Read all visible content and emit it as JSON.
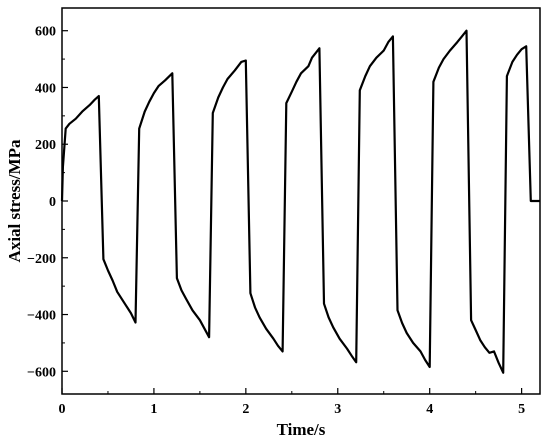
{
  "chart_data": {
    "type": "line",
    "xlabel": "Time/s",
    "ylabel": "Axial stress/MPa",
    "xlim": [
      0,
      5.2
    ],
    "ylim": [
      -680,
      680
    ],
    "x_ticks": [
      0,
      1,
      2,
      3,
      4,
      5
    ],
    "y_ticks": [
      -600,
      -400,
      -200,
      0,
      200,
      400,
      600
    ],
    "grid": false,
    "series": [
      {
        "line_color": "#000000",
        "points": [
          [
            0.0,
            0
          ],
          [
            0.01,
            120
          ],
          [
            0.04,
            255
          ],
          [
            0.08,
            272
          ],
          [
            0.15,
            290
          ],
          [
            0.22,
            315
          ],
          [
            0.3,
            338
          ],
          [
            0.35,
            355
          ],
          [
            0.4,
            370
          ],
          [
            0.45,
            -205
          ],
          [
            0.5,
            -245
          ],
          [
            0.55,
            -280
          ],
          [
            0.6,
            -320
          ],
          [
            0.68,
            -360
          ],
          [
            0.75,
            -395
          ],
          [
            0.8,
            -428
          ],
          [
            0.84,
            255
          ],
          [
            0.9,
            315
          ],
          [
            0.95,
            350
          ],
          [
            1.0,
            380
          ],
          [
            1.05,
            405
          ],
          [
            1.12,
            425
          ],
          [
            1.2,
            450
          ],
          [
            1.25,
            -272
          ],
          [
            1.3,
            -315
          ],
          [
            1.35,
            -345
          ],
          [
            1.42,
            -385
          ],
          [
            1.5,
            -420
          ],
          [
            1.55,
            -450
          ],
          [
            1.6,
            -480
          ],
          [
            1.64,
            310
          ],
          [
            1.7,
            365
          ],
          [
            1.75,
            400
          ],
          [
            1.8,
            430
          ],
          [
            1.88,
            460
          ],
          [
            1.95,
            490
          ],
          [
            2.0,
            495
          ],
          [
            2.05,
            -325
          ],
          [
            2.1,
            -375
          ],
          [
            2.15,
            -410
          ],
          [
            2.22,
            -450
          ],
          [
            2.3,
            -485
          ],
          [
            2.35,
            -510
          ],
          [
            2.4,
            -530
          ],
          [
            2.44,
            345
          ],
          [
            2.5,
            385
          ],
          [
            2.55,
            420
          ],
          [
            2.6,
            450
          ],
          [
            2.68,
            475
          ],
          [
            2.72,
            505
          ],
          [
            2.8,
            538
          ],
          [
            2.85,
            -362
          ],
          [
            2.9,
            -410
          ],
          [
            2.95,
            -445
          ],
          [
            3.02,
            -485
          ],
          [
            3.1,
            -520
          ],
          [
            3.15,
            -545
          ],
          [
            3.2,
            -568
          ],
          [
            3.24,
            390
          ],
          [
            3.3,
            440
          ],
          [
            3.35,
            475
          ],
          [
            3.42,
            505
          ],
          [
            3.5,
            530
          ],
          [
            3.55,
            560
          ],
          [
            3.6,
            580
          ],
          [
            3.65,
            -385
          ],
          [
            3.7,
            -430
          ],
          [
            3.75,
            -465
          ],
          [
            3.82,
            -500
          ],
          [
            3.9,
            -530
          ],
          [
            3.95,
            -560
          ],
          [
            4.0,
            -585
          ],
          [
            4.04,
            420
          ],
          [
            4.1,
            470
          ],
          [
            4.15,
            500
          ],
          [
            4.22,
            530
          ],
          [
            4.3,
            560
          ],
          [
            4.35,
            580
          ],
          [
            4.4,
            600
          ],
          [
            4.45,
            -420
          ],
          [
            4.5,
            -455
          ],
          [
            4.55,
            -490
          ],
          [
            4.6,
            -515
          ],
          [
            4.65,
            -535
          ],
          [
            4.7,
            -530
          ],
          [
            4.75,
            -570
          ],
          [
            4.8,
            -605
          ],
          [
            4.84,
            440
          ],
          [
            4.9,
            490
          ],
          [
            4.95,
            515
          ],
          [
            5.0,
            535
          ],
          [
            5.05,
            545
          ],
          [
            5.1,
            0
          ],
          [
            5.2,
            0
          ]
        ]
      }
    ]
  }
}
